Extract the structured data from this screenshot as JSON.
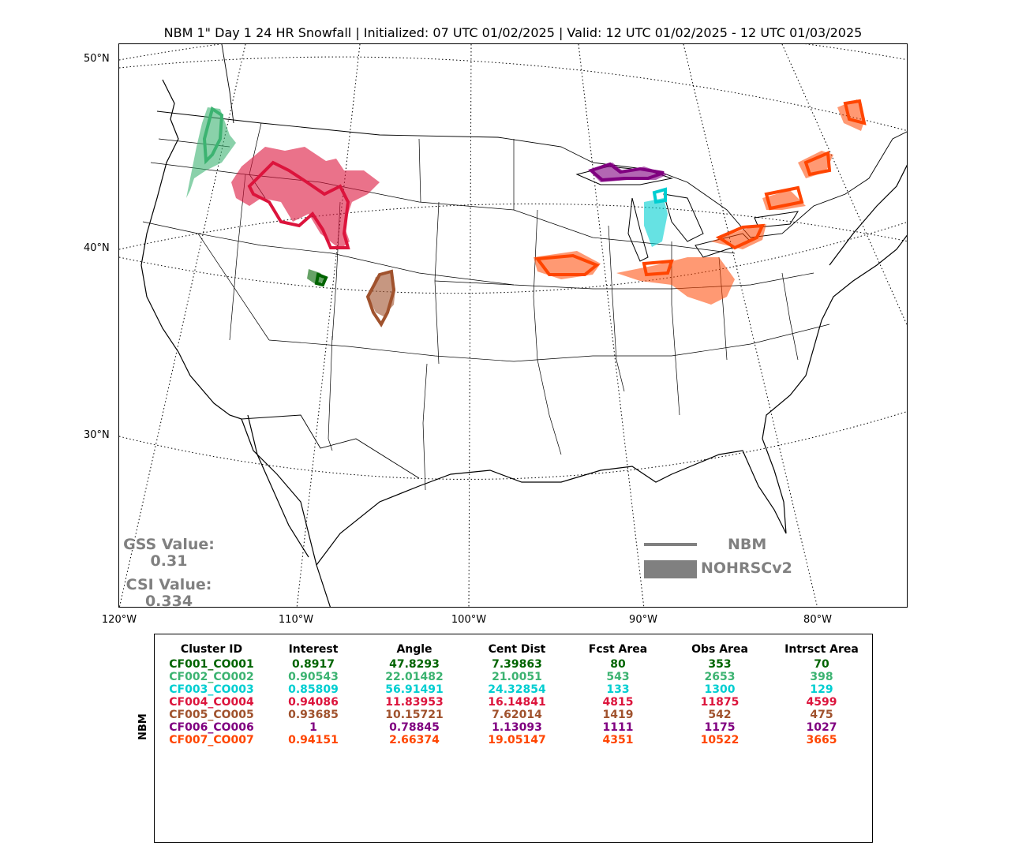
{
  "title": "NBM 1\" Day 1 24 HR Snowfall | Initialized: 07 UTC 01/02/2025 | Valid: 12 UTC 01/02/2025 - 12 UTC 01/03/2025",
  "lat_labels": [
    "50°N",
    "40°N",
    "30°N"
  ],
  "lon_labels": [
    "120°W",
    "110°W",
    "100°W",
    "90°W",
    "80°W"
  ],
  "gss_label": "GSS Value:",
  "gss_value": "0.31",
  "csi_label": "CSI Value:",
  "csi_value": "0.334",
  "legend": {
    "forecast": "NBM",
    "observed": "NOHRSCv2"
  },
  "table_side_label": "NBM",
  "table_headers": [
    "Cluster ID",
    "Interest",
    "Angle",
    "Cent Dist",
    "Fcst Area",
    "Obs Area",
    "Intrsct Area"
  ],
  "table_rows": [
    {
      "color": "#006400",
      "cells": [
        "CF001_CO001",
        "0.8917",
        "47.8293",
        "7.39863",
        "80",
        "353",
        "70"
      ]
    },
    {
      "color": "#3cb371",
      "cells": [
        "CF002_CO002",
        "0.90543",
        "22.01482",
        "21.0051",
        "543",
        "2653",
        "398"
      ]
    },
    {
      "color": "#00ced1",
      "cells": [
        "CF003_CO003",
        "0.85809",
        "56.91491",
        "24.32854",
        "133",
        "1300",
        "129"
      ]
    },
    {
      "color": "#dc143c",
      "cells": [
        "CF004_CO004",
        "0.94086",
        "11.83953",
        "16.14841",
        "4815",
        "11875",
        "4599"
      ]
    },
    {
      "color": "#a0522d",
      "cells": [
        "CF005_CO005",
        "0.93685",
        "10.15721",
        "7.62014",
        "1419",
        "542",
        "475"
      ]
    },
    {
      "color": "#800080",
      "cells": [
        "CF006_CO006",
        "1",
        "0.78845",
        "1.13093",
        "1111",
        "1175",
        "1027"
      ]
    },
    {
      "color": "#ff4500",
      "cells": [
        "CF007_CO007",
        "0.94151",
        "2.66374",
        "19.05147",
        "4351",
        "10522",
        "3665"
      ]
    }
  ]
}
